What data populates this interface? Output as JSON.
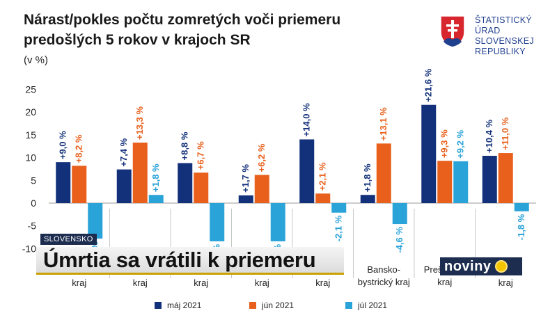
{
  "header": {
    "title_line1": "Nárast/pokles počtu zomretých voči priemeru",
    "title_line2": "predošlých 5 rokov v krajoch SR",
    "unit": "(v %)"
  },
  "logo": {
    "lines": [
      "ŠTATISTICKÝ",
      "ÚRAD",
      "SLOVENSKEJ",
      "REPUBLIKY"
    ],
    "shield_color": "#d7262e",
    "cross_color": "#ffffff",
    "hill_color": "#1f3f8f"
  },
  "chart_data": {
    "type": "bar",
    "ylim": [
      -10,
      25
    ],
    "yticks": [
      "25",
      "20",
      "15",
      "10",
      "5",
      "0",
      "-5",
      "-10"
    ],
    "ytick_values": [
      25,
      20,
      15,
      10,
      5,
      0,
      -5,
      -10
    ],
    "categories": [
      [
        "kraj"
      ],
      [
        "kraj"
      ],
      [
        "kraj"
      ],
      [
        "kraj"
      ],
      [
        "kraj"
      ],
      [
        "Bansko-",
        "bystrický kraj"
      ],
      [
        "Prešovský",
        "kraj"
      ],
      [
        "kraj"
      ]
    ],
    "series": [
      {
        "name": "máj 2021",
        "color": "#13317a",
        "values": [
          9.0,
          7.4,
          8.8,
          1.7,
          14.0,
          1.8,
          21.6,
          10.4
        ],
        "labels": [
          "+9,0 %",
          "+7,4 %",
          "+8,8 %",
          "+1,7 %",
          "+14,0 %",
          "+1,8 %",
          "+21,6 %",
          "+10,4 %"
        ]
      },
      {
        "name": "jún 2021",
        "color": "#e8601c",
        "values": [
          8.2,
          13.3,
          6.7,
          6.2,
          2.1,
          13.1,
          9.3,
          11.0
        ],
        "labels": [
          "+8,2 %",
          "+13,3 %",
          "+6,7 %",
          "+6,2 %",
          "+2,1 %",
          "+13,1 %",
          "+9,3 %",
          "+11,0 %"
        ]
      },
      {
        "name": "júl 2021",
        "color": "#2aa3d8",
        "values": [
          -7.8,
          1.8,
          -8.4,
          -8.4,
          -2.1,
          -4.6,
          9.2,
          -1.8
        ],
        "labels": [
          "-7,8 %",
          "+1,8 %",
          "-8,4 %",
          "-8,4 %",
          "-2,1 %",
          "-4,6 %",
          "+9,2 %",
          "-1,8 %"
        ]
      }
    ],
    "legend_position": "bottom",
    "grid": false
  },
  "overlay": {
    "ticker": "SLOVENSKO",
    "headline": "Úmrtia sa vrátili k priemeru",
    "brand": "noviny"
  }
}
